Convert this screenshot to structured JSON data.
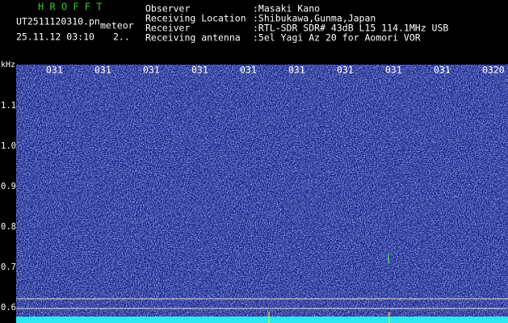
{
  "header": {
    "app": "H R O F F T",
    "file": "UT2511120310.pn",
    "mode": "meteor",
    "datetime": "25.11.12 03:10",
    "extra": "2.."
  },
  "station": [
    {
      "label": "Observer",
      "value": ":Masaki Kano"
    },
    {
      "label": "Receiving Location",
      "value": ":Shibukawa,Gunma,Japan"
    },
    {
      "label": "Receiver",
      "value": ":RTL-SDR SDR# 43dB L15 114.1MHz USB"
    },
    {
      "label": "Receiving antenna",
      "value": ":5el Yagi Az 20 for Aomori VOR"
    }
  ],
  "time_labels": [
    "031",
    "031",
    "031",
    "031",
    "031",
    "031",
    "031",
    "031",
    "031",
    "0320"
  ],
  "freq_axis": {
    "unit": "kHz",
    "labels": [
      "1.1",
      "1.0",
      "0.9",
      "0.8",
      "0.7",
      "0.6"
    ]
  }
}
